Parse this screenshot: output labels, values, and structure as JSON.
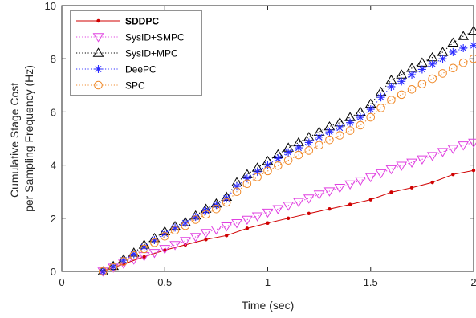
{
  "chart_data": {
    "type": "line",
    "xlabel": "Time (sec)",
    "ylabel_lines": [
      "Cumulative Stage Cost",
      "per Sampling Frequency (Hz)"
    ],
    "xlim": [
      0,
      2
    ],
    "ylim": [
      0,
      10
    ],
    "xticks": [
      "0",
      "0.5",
      "1",
      "1.5",
      "2"
    ],
    "yticks": [
      "0",
      "2",
      "4",
      "6",
      "8",
      "10"
    ],
    "grid": false,
    "legend_position": "top-left",
    "series": [
      {
        "name": "SDDPC",
        "color": "#d00000",
        "marker": "dot",
        "linestyle": "solid",
        "bold": true,
        "x": [
          0.2,
          0.3,
          0.4,
          0.5,
          0.6,
          0.7,
          0.8,
          0.9,
          1.0,
          1.1,
          1.2,
          1.3,
          1.4,
          1.5,
          1.6,
          1.7,
          1.8,
          1.9,
          2.0
        ],
        "y": [
          0.0,
          0.28,
          0.55,
          0.8,
          1.0,
          1.2,
          1.35,
          1.62,
          1.82,
          2.0,
          2.18,
          2.35,
          2.52,
          2.7,
          2.98,
          3.15,
          3.35,
          3.65,
          3.8
        ]
      },
      {
        "name": "SysID+SMPC",
        "color": "#e040e0",
        "marker": "triangle-down",
        "linestyle": "dotted",
        "bold": false,
        "x": [
          0.2,
          0.25,
          0.3,
          0.35,
          0.4,
          0.45,
          0.5,
          0.55,
          0.6,
          0.65,
          0.7,
          0.75,
          0.8,
          0.85,
          0.9,
          0.95,
          1.0,
          1.05,
          1.1,
          1.15,
          1.2,
          1.25,
          1.3,
          1.35,
          1.4,
          1.45,
          1.5,
          1.55,
          1.6,
          1.65,
          1.7,
          1.75,
          1.8,
          1.85,
          1.9,
          1.95,
          2.0
        ],
        "y": [
          0.0,
          0.15,
          0.3,
          0.45,
          0.58,
          0.7,
          0.85,
          1.0,
          1.15,
          1.3,
          1.45,
          1.58,
          1.7,
          1.82,
          1.95,
          2.08,
          2.22,
          2.35,
          2.48,
          2.62,
          2.75,
          2.9,
          3.02,
          3.15,
          3.28,
          3.42,
          3.55,
          3.7,
          3.85,
          3.98,
          4.1,
          4.22,
          4.35,
          4.5,
          4.62,
          4.75,
          4.85
        ]
      },
      {
        "name": "SysID+MPC",
        "color": "#000000",
        "marker": "triangle-up",
        "linestyle": "dotted",
        "bold": false,
        "x": [
          0.2,
          0.25,
          0.3,
          0.35,
          0.4,
          0.45,
          0.5,
          0.55,
          0.6,
          0.65,
          0.7,
          0.75,
          0.8,
          0.85,
          0.9,
          0.95,
          1.0,
          1.05,
          1.1,
          1.15,
          1.2,
          1.25,
          1.3,
          1.35,
          1.4,
          1.45,
          1.5,
          1.55,
          1.6,
          1.65,
          1.7,
          1.75,
          1.8,
          1.85,
          1.9,
          1.95,
          2.0
        ],
        "y": [
          0.0,
          0.2,
          0.45,
          0.7,
          1.0,
          1.25,
          1.5,
          1.7,
          1.85,
          2.1,
          2.35,
          2.55,
          2.8,
          3.35,
          3.65,
          3.9,
          4.15,
          4.4,
          4.65,
          4.85,
          5.05,
          5.25,
          5.45,
          5.6,
          5.8,
          6.0,
          6.3,
          6.75,
          7.2,
          7.4,
          7.65,
          7.85,
          8.05,
          8.25,
          8.6,
          8.85,
          9.05
        ]
      },
      {
        "name": "DeePC",
        "color": "#2b2bff",
        "marker": "asterisk",
        "linestyle": "dotted",
        "bold": false,
        "x": [
          0.2,
          0.25,
          0.3,
          0.35,
          0.4,
          0.45,
          0.5,
          0.55,
          0.6,
          0.65,
          0.7,
          0.75,
          0.8,
          0.85,
          0.9,
          0.95,
          1.0,
          1.05,
          1.1,
          1.15,
          1.2,
          1.25,
          1.3,
          1.35,
          1.4,
          1.45,
          1.5,
          1.55,
          1.6,
          1.65,
          1.7,
          1.75,
          1.8,
          1.85,
          1.9,
          1.95,
          2.0
        ],
        "y": [
          0.0,
          0.18,
          0.42,
          0.65,
          0.92,
          1.18,
          1.42,
          1.65,
          1.82,
          2.05,
          2.28,
          2.5,
          2.75,
          3.2,
          3.5,
          3.75,
          4.0,
          4.25,
          4.48,
          4.65,
          4.85,
          5.05,
          5.25,
          5.4,
          5.6,
          5.8,
          6.1,
          6.55,
          6.95,
          7.15,
          7.4,
          7.6,
          7.8,
          8.0,
          8.25,
          8.4,
          8.5
        ]
      },
      {
        "name": "SPC",
        "color": "#f08a2a",
        "marker": "circle",
        "linestyle": "dotted",
        "bold": false,
        "x": [
          0.2,
          0.25,
          0.3,
          0.35,
          0.4,
          0.45,
          0.5,
          0.55,
          0.6,
          0.65,
          0.7,
          0.75,
          0.8,
          0.85,
          0.9,
          0.95,
          1.0,
          1.05,
          1.1,
          1.15,
          1.2,
          1.25,
          1.3,
          1.35,
          1.4,
          1.45,
          1.5,
          1.55,
          1.6,
          1.65,
          1.7,
          1.75,
          1.8,
          1.85,
          1.9,
          1.95,
          2.0
        ],
        "y": [
          0.0,
          0.15,
          0.38,
          0.6,
          0.85,
          1.08,
          1.32,
          1.55,
          1.72,
          1.95,
          2.15,
          2.35,
          2.6,
          3.0,
          3.3,
          3.55,
          3.78,
          3.98,
          4.18,
          4.38,
          4.55,
          4.75,
          4.95,
          5.12,
          5.3,
          5.5,
          5.8,
          6.15,
          6.45,
          6.65,
          6.85,
          7.05,
          7.25,
          7.45,
          7.65,
          7.85,
          8.0
        ]
      }
    ]
  }
}
